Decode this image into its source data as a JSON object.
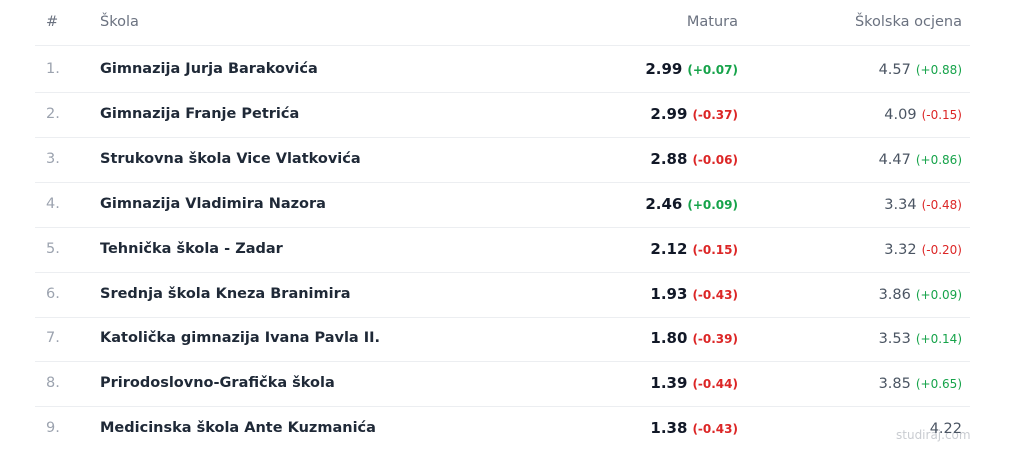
{
  "header": {
    "rank": "#",
    "school": "Škola",
    "matura": "Matura",
    "grade": "Školska ocjena"
  },
  "rows": [
    {
      "rank": "1.",
      "name": "Gimnazija Jurja Barakovića",
      "matura": "2.99",
      "matura_change": "(+0.07)",
      "grade": "4.57",
      "grade_change": "(+0.88)"
    },
    {
      "rank": "2.",
      "name": "Gimnazija Franje Petrića",
      "matura": "2.99",
      "matura_change": "(-0.37)",
      "grade": "4.09",
      "grade_change": "(-0.15)"
    },
    {
      "rank": "3.",
      "name": "Strukovna škola Vice Vlatkovića",
      "matura": "2.88",
      "matura_change": "(-0.06)",
      "grade": "4.47",
      "grade_change": "(+0.86)"
    },
    {
      "rank": "4.",
      "name": "Gimnazija Vladimira Nazora",
      "matura": "2.46",
      "matura_change": "(+0.09)",
      "grade": "3.34",
      "grade_change": "(-0.48)"
    },
    {
      "rank": "5.",
      "name": "Tehnička škola - Zadar",
      "matura": "2.12",
      "matura_change": "(-0.15)",
      "grade": "3.32",
      "grade_change": "(-0.20)"
    },
    {
      "rank": "6.",
      "name": "Srednja škola Kneza Branimira",
      "matura": "1.93",
      "matura_change": "(-0.43)",
      "grade": "3.86",
      "grade_change": "(+0.09)"
    },
    {
      "rank": "7.",
      "name": "Katolička gimnazija Ivana Pavla II.",
      "matura": "1.80",
      "matura_change": "(-0.39)",
      "grade": "3.53",
      "grade_change": "(+0.14)"
    },
    {
      "rank": "8.",
      "name": "Prirodoslovno-Grafička škola",
      "matura": "1.39",
      "matura_change": "(-0.44)",
      "grade": "3.85",
      "grade_change": "(+0.65)"
    },
    {
      "rank": "9.",
      "name": "Medicinska škola Ante Kuzmanića",
      "matura": "1.38",
      "matura_change": "(-0.43)",
      "grade": "4.22"
    }
  ],
  "watermark": "studiraj.com"
}
